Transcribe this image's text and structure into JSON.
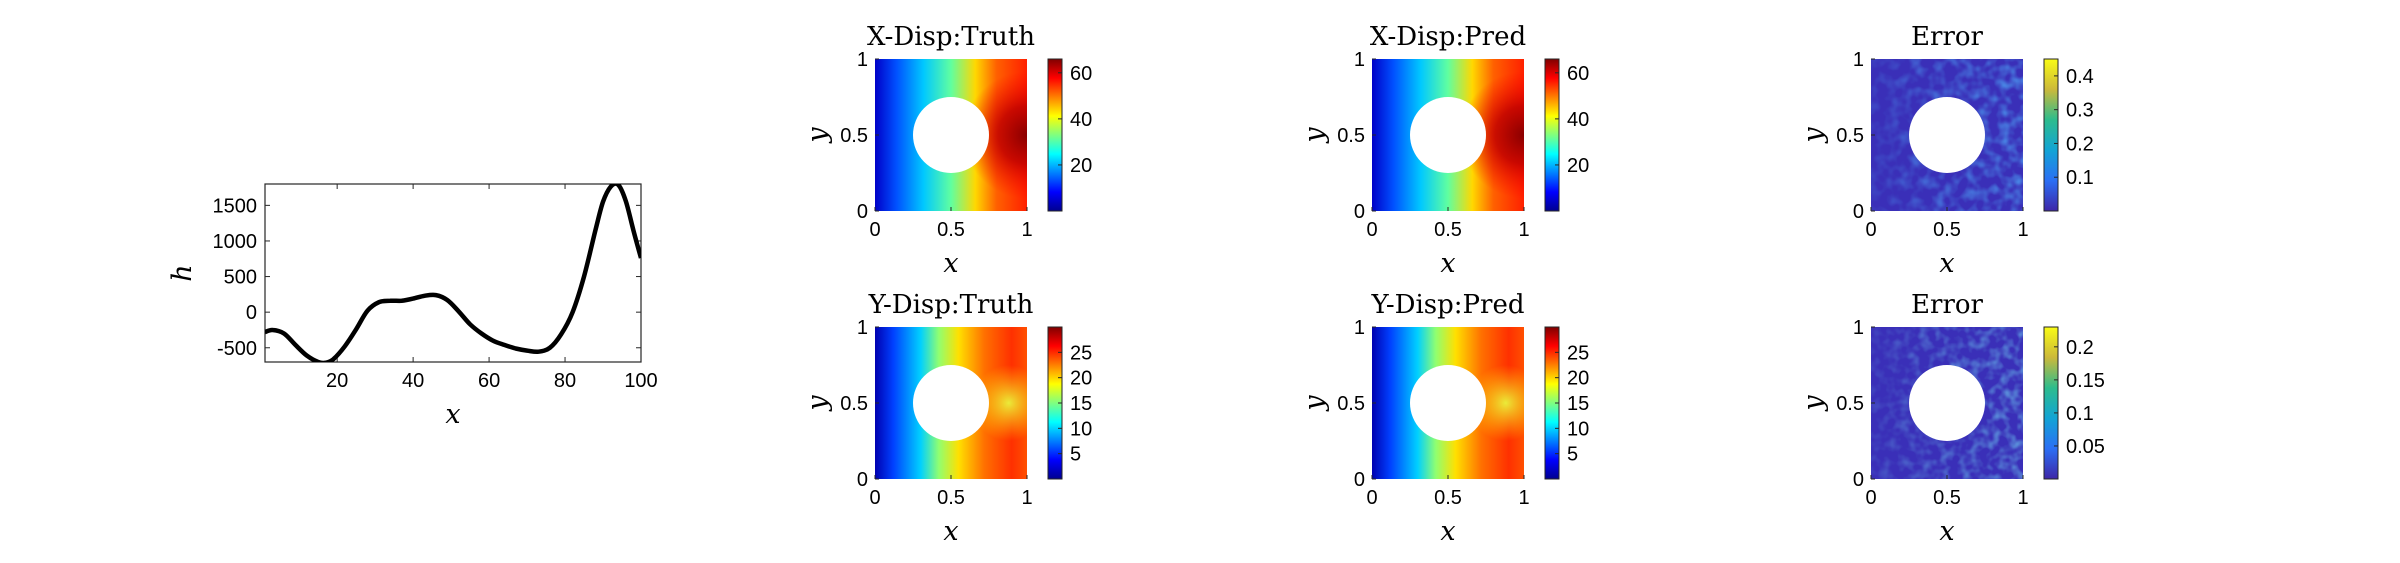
{
  "chart_data": [
    {
      "type": "line",
      "title": "",
      "xlabel": "x",
      "ylabel": "h",
      "xlim": [
        1,
        100
      ],
      "ylim": [
        -700,
        1800
      ],
      "xticks": [
        20,
        40,
        60,
        80,
        100
      ],
      "yticks": [
        -500,
        0,
        500,
        1000,
        1500
      ],
      "series": [
        {
          "color": "#000000",
          "x": [
            1,
            3,
            6,
            9,
            12,
            15,
            17,
            19,
            22,
            25,
            28,
            31,
            34,
            37,
            40,
            43,
            46,
            49,
            52,
            55,
            58,
            61,
            64,
            67,
            70,
            73,
            76,
            79,
            82,
            85,
            88,
            90,
            92,
            94,
            96,
            98,
            100
          ],
          "y": [
            -280,
            -250,
            -300,
            -460,
            -610,
            -700,
            -710,
            -660,
            -480,
            -240,
            20,
            140,
            160,
            160,
            190,
            230,
            240,
            170,
            10,
            -170,
            -300,
            -400,
            -460,
            -510,
            -540,
            -555,
            -500,
            -310,
            0,
            500,
            1150,
            1550,
            1760,
            1790,
            1560,
            1150,
            760
          ]
        }
      ]
    },
    {
      "type": "heatmap",
      "title": "X-Disp:Truth",
      "xlabel": "x",
      "ylabel": "y",
      "xlim": [
        0,
        1
      ],
      "ylim": [
        0,
        1
      ],
      "xticks": [
        "0",
        "0.5",
        "1"
      ],
      "yticks": [
        "0",
        "0.5",
        "1"
      ],
      "colormap": "jet",
      "clim": [
        0,
        66
      ],
      "colorbar_ticks": [
        "20",
        "40",
        "60"
      ],
      "hole": {
        "center": [
          0.5,
          0.5
        ],
        "radius": 0.25
      }
    },
    {
      "type": "heatmap",
      "title": "X-Disp:Pred",
      "xlabel": "x",
      "ylabel": "y",
      "xlim": [
        0,
        1
      ],
      "ylim": [
        0,
        1
      ],
      "xticks": [
        "0",
        "0.5",
        "1"
      ],
      "yticks": [
        "0",
        "0.5",
        "1"
      ],
      "colormap": "jet",
      "clim": [
        0,
        66
      ],
      "colorbar_ticks": [
        "20",
        "40",
        "60"
      ],
      "hole": {
        "center": [
          0.5,
          0.5
        ],
        "radius": 0.25
      }
    },
    {
      "type": "heatmap",
      "title": "Error",
      "xlabel": "x",
      "ylabel": "y",
      "xlim": [
        0,
        1
      ],
      "ylim": [
        0,
        1
      ],
      "xticks": [
        "0",
        "0.5",
        "1"
      ],
      "yticks": [
        "0",
        "0.5",
        "1"
      ],
      "colormap": "parula",
      "clim": [
        0,
        0.45
      ],
      "colorbar_ticks": [
        "0.1",
        "0.2",
        "0.3",
        "0.4"
      ],
      "hole": {
        "center": [
          0.5,
          0.5
        ],
        "radius": 0.25
      }
    },
    {
      "type": "heatmap",
      "title": "Y-Disp:Truth",
      "xlabel": "x",
      "ylabel": "y",
      "xlim": [
        0,
        1
      ],
      "ylim": [
        0,
        1
      ],
      "xticks": [
        "0",
        "0.5",
        "1"
      ],
      "yticks": [
        "0",
        "0.5",
        "1"
      ],
      "colormap": "jet",
      "clim": [
        0,
        30
      ],
      "colorbar_ticks": [
        "5",
        "10",
        "15",
        "20",
        "25"
      ],
      "hole": {
        "center": [
          0.5,
          0.5
        ],
        "radius": 0.25
      }
    },
    {
      "type": "heatmap",
      "title": "Y-Disp:Pred",
      "xlabel": "x",
      "ylabel": "y",
      "xlim": [
        0,
        1
      ],
      "ylim": [
        0,
        1
      ],
      "xticks": [
        "0",
        "0.5",
        "1"
      ],
      "yticks": [
        "0",
        "0.5",
        "1"
      ],
      "colormap": "jet",
      "clim": [
        0,
        30
      ],
      "colorbar_ticks": [
        "5",
        "10",
        "15",
        "20",
        "25"
      ],
      "hole": {
        "center": [
          0.5,
          0.5
        ],
        "radius": 0.25
      }
    },
    {
      "type": "heatmap",
      "title": "Error",
      "xlabel": "x",
      "ylabel": "y",
      "xlim": [
        0,
        1
      ],
      "ylim": [
        0,
        1
      ],
      "xticks": [
        "0",
        "0.5",
        "1"
      ],
      "yticks": [
        "0",
        "0.5",
        "1"
      ],
      "colormap": "parula",
      "clim": [
        0,
        0.23
      ],
      "colorbar_ticks": [
        "0.05",
        "0.1",
        "0.15",
        "0.2"
      ],
      "hole": {
        "center": [
          0.5,
          0.5
        ],
        "radius": 0.25
      }
    }
  ]
}
